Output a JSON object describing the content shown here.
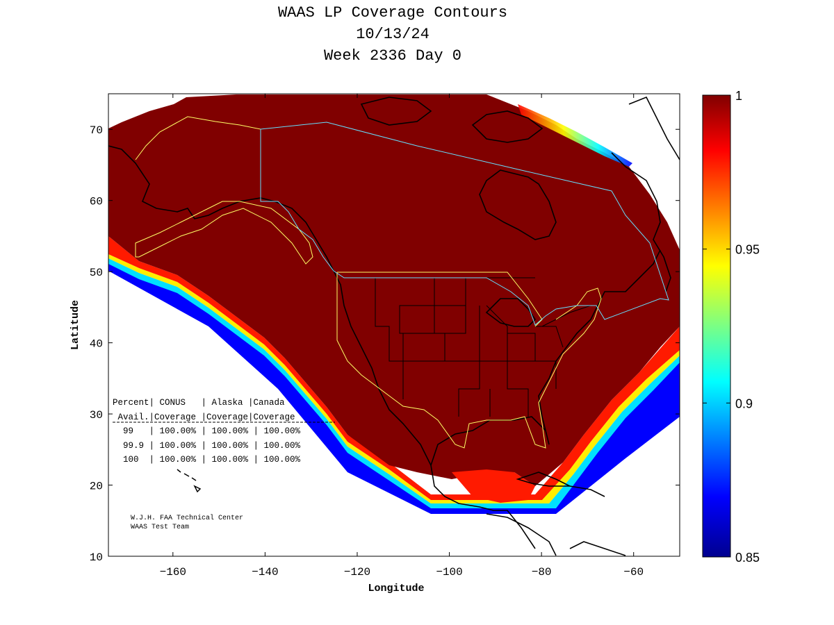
{
  "title": [
    "WAAS LP Coverage Contours",
    "10/13/24",
    "Week 2336 Day 0"
  ],
  "axes": {
    "xlabel": "Longitude",
    "ylabel": "Latitude",
    "xlim": [
      -174,
      -50
    ],
    "ylim": [
      10,
      75
    ],
    "xticks": [
      -160,
      -140,
      -120,
      -100,
      -80,
      -60
    ],
    "yticks": [
      10,
      20,
      30,
      40,
      50,
      60,
      70
    ]
  },
  "colorbar": {
    "min": 0.85,
    "max": 1,
    "ticks": [
      "1",
      "0.95",
      "0.9",
      "0.85"
    ],
    "colormap": "jet",
    "colors": {
      "top": "#800000",
      "red": "#ff0000",
      "yellow": "#ffff00",
      "cyan": "#00ffff",
      "blue": "#0000ff",
      "bottom": "#00008f"
    }
  },
  "table": {
    "header1": "Percent| CONUS   | Alaska |Canada",
    "header2": " Avail.|Coverage |Coverage|Coverage",
    "rows": [
      "  99   | 100.00% | 100.00% | 100.00%",
      "  99.9 | 100.00% | 100.00% | 100.00%",
      "  100  | 100.00% | 100.00% | 100.00%"
    ]
  },
  "credit": [
    "W.J.H. FAA Technical Center",
    "WAAS Test Team"
  ]
}
